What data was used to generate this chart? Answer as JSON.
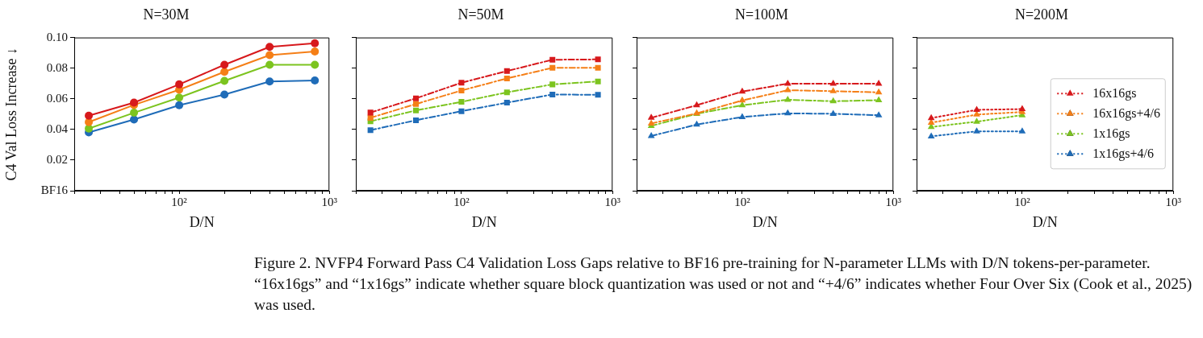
{
  "chart_data": [
    {
      "type": "line",
      "title": "N=30M",
      "xlabel": "D/N",
      "ylabel": "C4 Val Loss Increase ↓",
      "log": "x",
      "grid": false,
      "legend": false,
      "marker": "circle",
      "line_style": "solid",
      "x": [
        25,
        50,
        100,
        200,
        400,
        800
      ],
      "xlim": [
        20,
        1000
      ],
      "xticks": [
        {
          "value": 20,
          "label": null
        },
        {
          "value": 30,
          "label": null
        },
        {
          "value": 40,
          "label": null
        },
        {
          "value": 50,
          "label": null
        },
        {
          "value": 60,
          "label": null
        },
        {
          "value": 70,
          "label": null
        },
        {
          "value": 80,
          "label": null
        },
        {
          "value": 90,
          "label": null
        },
        {
          "value": 100,
          "label": "10²"
        },
        {
          "value": 200,
          "label": null
        },
        {
          "value": 300,
          "label": null
        },
        {
          "value": 400,
          "label": null
        },
        {
          "value": 500,
          "label": null
        },
        {
          "value": 600,
          "label": null
        },
        {
          "value": 700,
          "label": null
        },
        {
          "value": 800,
          "label": null
        },
        {
          "value": 900,
          "label": null
        },
        {
          "value": 1000,
          "label": "10³"
        }
      ],
      "ylim": [
        0,
        0.1
      ],
      "yticks": [
        {
          "value": 0,
          "label": "BF16"
        },
        0.02,
        0.04,
        0.06,
        0.08,
        {
          "value": 0.1,
          "label": "0.10"
        }
      ],
      "series": [
        {
          "color": "#d7191c",
          "values": [
            0.049,
            0.0575,
            0.0694,
            0.0822,
            0.0939,
            0.0962
          ]
        },
        {
          "color": "#f57f17",
          "values": [
            0.0448,
            0.056,
            0.0659,
            0.0776,
            0.0885,
            0.0909
          ]
        },
        {
          "color": "#7cc41f",
          "values": [
            0.0406,
            0.0509,
            0.0608,
            0.0717,
            0.0822,
            0.0822
          ]
        },
        {
          "color": "#1f6cb8",
          "values": [
            0.0381,
            0.0465,
            0.0558,
            0.0628,
            0.0713,
            0.072
          ]
        }
      ]
    },
    {
      "type": "line",
      "title": "N=50M",
      "xlabel": "D/N",
      "log": "x",
      "grid": false,
      "legend": false,
      "marker": "square",
      "line_style": "dashed",
      "tick_labels": "x",
      "x": [
        25,
        50,
        100,
        200,
        400,
        800
      ],
      "xlim": [
        20,
        1000
      ],
      "xticks": [
        {
          "value": 20,
          "label": null
        },
        {
          "value": 30,
          "label": null
        },
        {
          "value": 40,
          "label": null
        },
        {
          "value": 50,
          "label": null
        },
        {
          "value": 60,
          "label": null
        },
        {
          "value": 70,
          "label": null
        },
        {
          "value": 80,
          "label": null
        },
        {
          "value": 90,
          "label": null
        },
        {
          "value": 100,
          "label": "10²"
        },
        {
          "value": 200,
          "label": null
        },
        {
          "value": 300,
          "label": null
        },
        {
          "value": 400,
          "label": null
        },
        {
          "value": 500,
          "label": null
        },
        {
          "value": 600,
          "label": null
        },
        {
          "value": 700,
          "label": null
        },
        {
          "value": 800,
          "label": null
        },
        {
          "value": 900,
          "label": null
        },
        {
          "value": 1000,
          "label": "10³"
        }
      ],
      "ylim": [
        0,
        0.1
      ],
      "yticks": [
        0,
        0.02,
        0.04,
        0.06,
        0.08,
        0.1
      ],
      "series": [
        {
          "color": "#d7191c",
          "values": [
            0.051,
            0.0603,
            0.0705,
            0.0781,
            0.0855,
            0.0857
          ]
        },
        {
          "color": "#f57f17",
          "values": [
            0.0476,
            0.0566,
            0.0654,
            0.0733,
            0.0802,
            0.0802
          ]
        },
        {
          "color": "#7cc41f",
          "values": [
            0.0453,
            0.0524,
            0.058,
            0.0642,
            0.0694,
            0.0713
          ]
        },
        {
          "color": "#1f6cb8",
          "values": [
            0.0395,
            0.046,
            0.0519,
            0.0575,
            0.0628,
            0.0626
          ]
        }
      ]
    },
    {
      "type": "line",
      "title": "N=100M",
      "xlabel": "D/N",
      "log": "x",
      "grid": false,
      "legend": false,
      "marker": "triangle",
      "line_style": "dashed",
      "tick_labels": "x",
      "x": [
        25,
        50,
        100,
        200,
        400,
        800
      ],
      "xlim": [
        20,
        1000
      ],
      "xticks": [
        {
          "value": 20,
          "label": null
        },
        {
          "value": 30,
          "label": null
        },
        {
          "value": 40,
          "label": null
        },
        {
          "value": 50,
          "label": null
        },
        {
          "value": 60,
          "label": null
        },
        {
          "value": 70,
          "label": null
        },
        {
          "value": 80,
          "label": null
        },
        {
          "value": 90,
          "label": null
        },
        {
          "value": 100,
          "label": "10²"
        },
        {
          "value": 200,
          "label": null
        },
        {
          "value": 300,
          "label": null
        },
        {
          "value": 400,
          "label": null
        },
        {
          "value": 500,
          "label": null
        },
        {
          "value": 600,
          "label": null
        },
        {
          "value": 700,
          "label": null
        },
        {
          "value": 800,
          "label": null
        },
        {
          "value": 900,
          "label": null
        },
        {
          "value": 1000,
          "label": "10³"
        }
      ],
      "ylim": [
        0,
        0.1
      ],
      "yticks": [
        0,
        0.02,
        0.04,
        0.06,
        0.08,
        0.1
      ],
      "series": [
        {
          "color": "#d7191c",
          "values": [
            0.0476,
            0.0558,
            0.0647,
            0.0699,
            0.0699,
            0.0699
          ]
        },
        {
          "color": "#f57f17",
          "values": [
            0.0439,
            0.0505,
            0.0589,
            0.0656,
            0.065,
            0.0642
          ]
        },
        {
          "color": "#7cc41f",
          "values": [
            0.0423,
            0.0502,
            0.0558,
            0.0594,
            0.0584,
            0.0591
          ]
        },
        {
          "color": "#1f6cb8",
          "values": [
            0.0357,
            0.0432,
            0.0481,
            0.0505,
            0.0502,
            0.0493
          ]
        }
      ]
    },
    {
      "type": "line",
      "title": "N=200M",
      "xlabel": "D/N",
      "log": "x",
      "grid": false,
      "legend": "center right",
      "marker": "triangle",
      "line_style": "dotted",
      "tick_labels": "x",
      "x": [
        25,
        50,
        100
      ],
      "xlim": [
        20,
        1000
      ],
      "xticks": [
        {
          "value": 20,
          "label": null
        },
        {
          "value": 30,
          "label": null
        },
        {
          "value": 40,
          "label": null
        },
        {
          "value": 50,
          "label": null
        },
        {
          "value": 60,
          "label": null
        },
        {
          "value": 70,
          "label": null
        },
        {
          "value": 80,
          "label": null
        },
        {
          "value": 90,
          "label": null
        },
        {
          "value": 100,
          "label": "10²"
        },
        {
          "value": 200,
          "label": null
        },
        {
          "value": 300,
          "label": null
        },
        {
          "value": 400,
          "label": null
        },
        {
          "value": 500,
          "label": null
        },
        {
          "value": 600,
          "label": null
        },
        {
          "value": 700,
          "label": null
        },
        {
          "value": 800,
          "label": null
        },
        {
          "value": 900,
          "label": null
        },
        {
          "value": 1000,
          "label": "10³"
        }
      ],
      "ylim": [
        0,
        0.1
      ],
      "yticks": [
        0,
        0.02,
        0.04,
        0.06,
        0.08,
        0.1
      ],
      "annotations": [
        "Figure 2. NVFP4 Forward Pass C4 Validation Loss Gaps relative to BF16 pre-training for N-parameter LLMs with D/N tokens-per-parameter. “16x16gs” and “1x16gs” indicate whether square block quantization was used or not and “+4/6” indicates whether Four Over Six (Cook et al., 2025) was used."
      ],
      "series": [
        {
          "name": "16x16gs",
          "color": "#d7191c",
          "values": [
            0.0474,
            0.0528,
            0.0533
          ]
        },
        {
          "name": "16x16gs+4/6",
          "color": "#f57f17",
          "values": [
            0.0444,
            0.0497,
            0.0514
          ]
        },
        {
          "name": "1x16gs",
          "color": "#7cc41f",
          "values": [
            0.0416,
            0.0451,
            0.0493
          ]
        },
        {
          "name": "1x16gs+4/6",
          "color": "#1f6cb8",
          "values": [
            0.0355,
            0.0388,
            0.0388
          ]
        }
      ]
    }
  ]
}
